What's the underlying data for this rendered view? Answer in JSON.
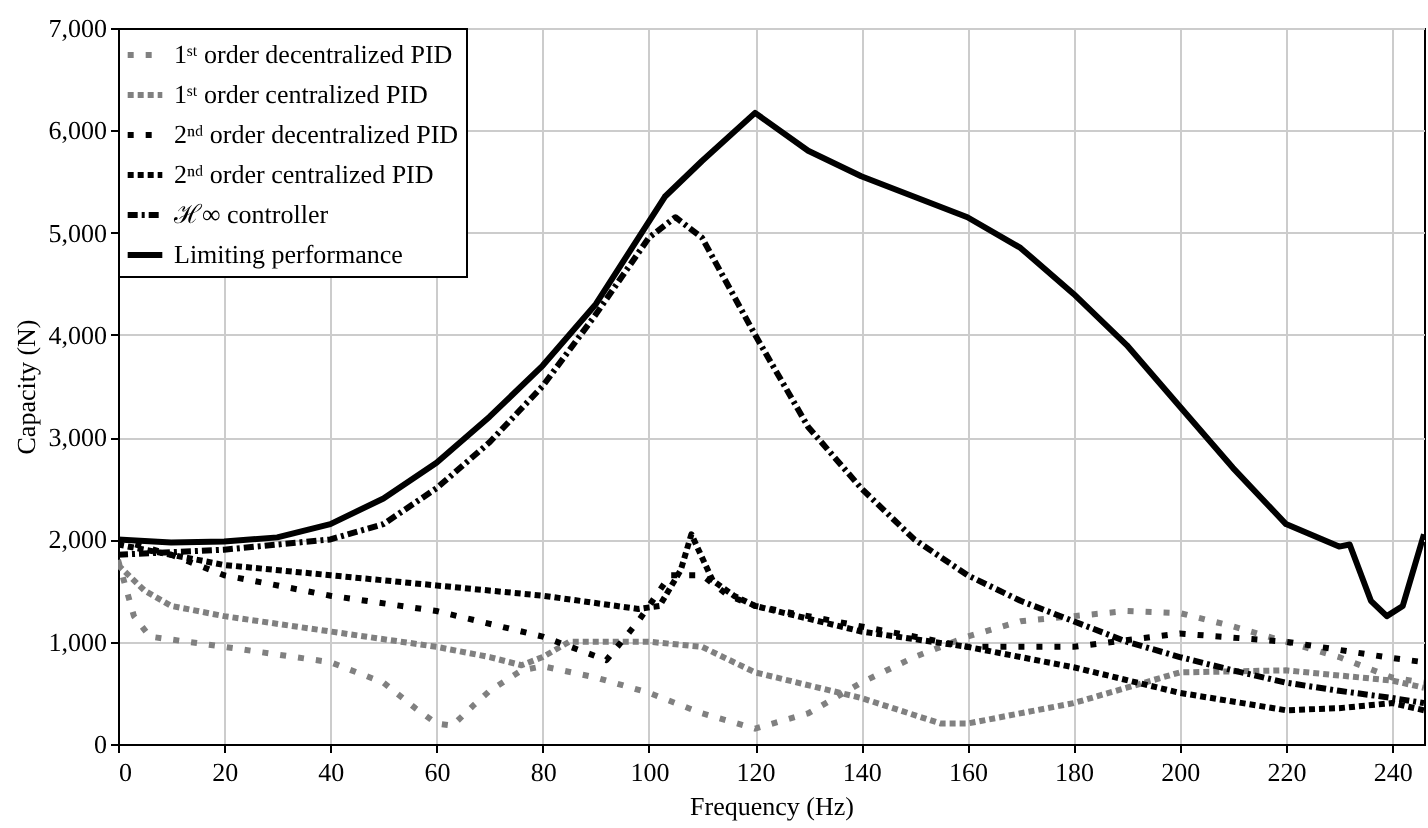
{
  "chart_data": {
    "type": "line",
    "xlabel": "Frequency (Hz)",
    "ylabel": "Capacity (N)",
    "xlim": [
      0,
      246
    ],
    "xticks": [
      0,
      20,
      40,
      60,
      80,
      100,
      120,
      140,
      160,
      180,
      200,
      220,
      240
    ],
    "ylim": [
      0,
      7000
    ],
    "yticks": [
      0,
      {
        "value": 1000,
        "label": "1,000"
      },
      {
        "value": 2000,
        "label": "2,000"
      },
      {
        "value": 3000,
        "label": "3,000"
      },
      {
        "value": 4000,
        "label": "4,000"
      },
      {
        "value": 5000,
        "label": "5,000"
      },
      {
        "value": 6000,
        "label": "6,000"
      },
      {
        "value": 7000,
        "label": "7,000"
      }
    ],
    "grid": true,
    "legend": "top left",
    "marker": "none",
    "series": [
      {
        "name": "1ˢᵗ order decentralized PID",
        "color": "#808080",
        "line_style": "dashed",
        "x": [
          0,
          3,
          6,
          20,
          40,
          50,
          56,
          60,
          63,
          67,
          70,
          76,
          80,
          90,
          100,
          110,
          120,
          130,
          140,
          150,
          160,
          170,
          180,
          190,
          200,
          210,
          220,
          230,
          240,
          246
        ],
        "values": [
          1800,
          1250,
          1050,
          950,
          800,
          600,
          350,
          200,
          180,
          380,
          520,
          720,
          760,
          650,
          500,
          300,
          150,
          300,
          600,
          850,
          1050,
          1200,
          1250,
          1300,
          1280,
          1150,
          1000,
          850,
          650,
          600
        ]
      },
      {
        "name": "1ˢᵗ order centralized PID",
        "color": "#808080",
        "line_style": "dotted",
        "x": [
          0,
          5,
          10,
          20,
          40,
          60,
          70,
          76,
          80,
          85,
          100,
          110,
          120,
          140,
          155,
          160,
          180,
          190,
          200,
          220,
          240,
          246
        ],
        "values": [
          1750,
          1500,
          1350,
          1250,
          1100,
          950,
          850,
          770,
          850,
          1000,
          1000,
          950,
          700,
          450,
          200,
          200,
          400,
          550,
          700,
          720,
          620,
          550
        ]
      },
      {
        "name": "2ⁿᵈ order decentralized PID",
        "color": "#000000",
        "line_style": "dashed",
        "x": [
          0,
          10,
          20,
          40,
          60,
          80,
          92,
          98,
          104,
          110,
          115,
          120,
          140,
          160,
          180,
          200,
          220,
          240,
          246
        ],
        "values": [
          2000,
          1850,
          1650,
          1450,
          1300,
          1050,
          820,
          1200,
          1650,
          1650,
          1450,
          1350,
          1150,
          950,
          950,
          1080,
          1000,
          840,
          800
        ]
      },
      {
        "name": "2ⁿᵈ order centralized PID",
        "color": "#000000",
        "line_style": "dotted",
        "x": [
          0,
          10,
          20,
          40,
          60,
          80,
          98,
          102,
          106,
          108,
          112,
          116,
          120,
          140,
          160,
          180,
          200,
          220,
          230,
          240,
          246
        ],
        "values": [
          1950,
          1850,
          1750,
          1650,
          1550,
          1450,
          1320,
          1350,
          1700,
          2050,
          1600,
          1450,
          1350,
          1100,
          950,
          750,
          500,
          330,
          350,
          400,
          330
        ]
      },
      {
        "name": "ℋ∞ controller",
        "color": "#000000",
        "line_style": "dashdot",
        "x": [
          0,
          20,
          40,
          50,
          60,
          70,
          80,
          90,
          100,
          105,
          110,
          120,
          130,
          140,
          150,
          160,
          170,
          180,
          190,
          200,
          210,
          220,
          230,
          240,
          246
        ],
        "values": [
          1850,
          1900,
          2000,
          2150,
          2500,
          2950,
          3500,
          4200,
          4950,
          5150,
          4950,
          4000,
          3100,
          2500,
          2000,
          1650,
          1400,
          1200,
          1000,
          850,
          720,
          600,
          520,
          450,
          400
        ]
      },
      {
        "name": "Limiting performance",
        "color": "#000000",
        "line_style": "solid",
        "x": [
          0,
          10,
          20,
          30,
          40,
          50,
          60,
          70,
          80,
          90,
          103,
          110,
          120,
          130,
          140,
          150,
          160,
          170,
          180,
          190,
          200,
          210,
          220,
          230,
          232,
          236,
          239,
          242,
          246
        ],
        "values": [
          2000,
          1970,
          1980,
          2020,
          2150,
          2400,
          2750,
          3200,
          3700,
          4300,
          5350,
          5700,
          6170,
          5800,
          5550,
          5350,
          5150,
          4850,
          4400,
          3900,
          3300,
          2700,
          2150,
          1930,
          1950,
          1400,
          1250,
          1350,
          2050
        ]
      }
    ]
  }
}
